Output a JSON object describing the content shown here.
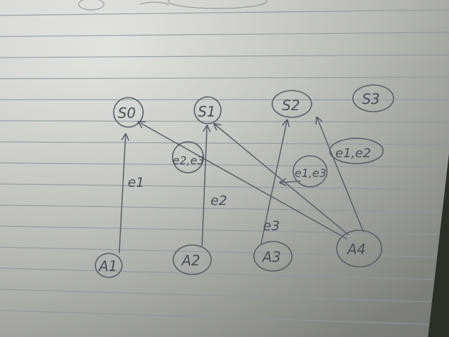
{
  "diagram": {
    "top_nodes": [
      {
        "label": "S0"
      },
      {
        "label": "S1"
      },
      {
        "label": "S2"
      },
      {
        "label": "S3"
      }
    ],
    "bottom_nodes": [
      {
        "label": "A1"
      },
      {
        "label": "A2"
      },
      {
        "label": "A3"
      },
      {
        "label": "A4"
      }
    ],
    "edge_labels": {
      "a1_s0": "e1",
      "a2_s1": "e2",
      "a3_s2": "e3",
      "a4_s1_group": "e2,e3",
      "a4_s0_group": "e1,e3",
      "a4_s2_group": "e1,e2"
    },
    "colors": {
      "paper": "#c9cbc6",
      "rule_line": "#8f9aa3",
      "ink": "#5a5d68"
    }
  }
}
